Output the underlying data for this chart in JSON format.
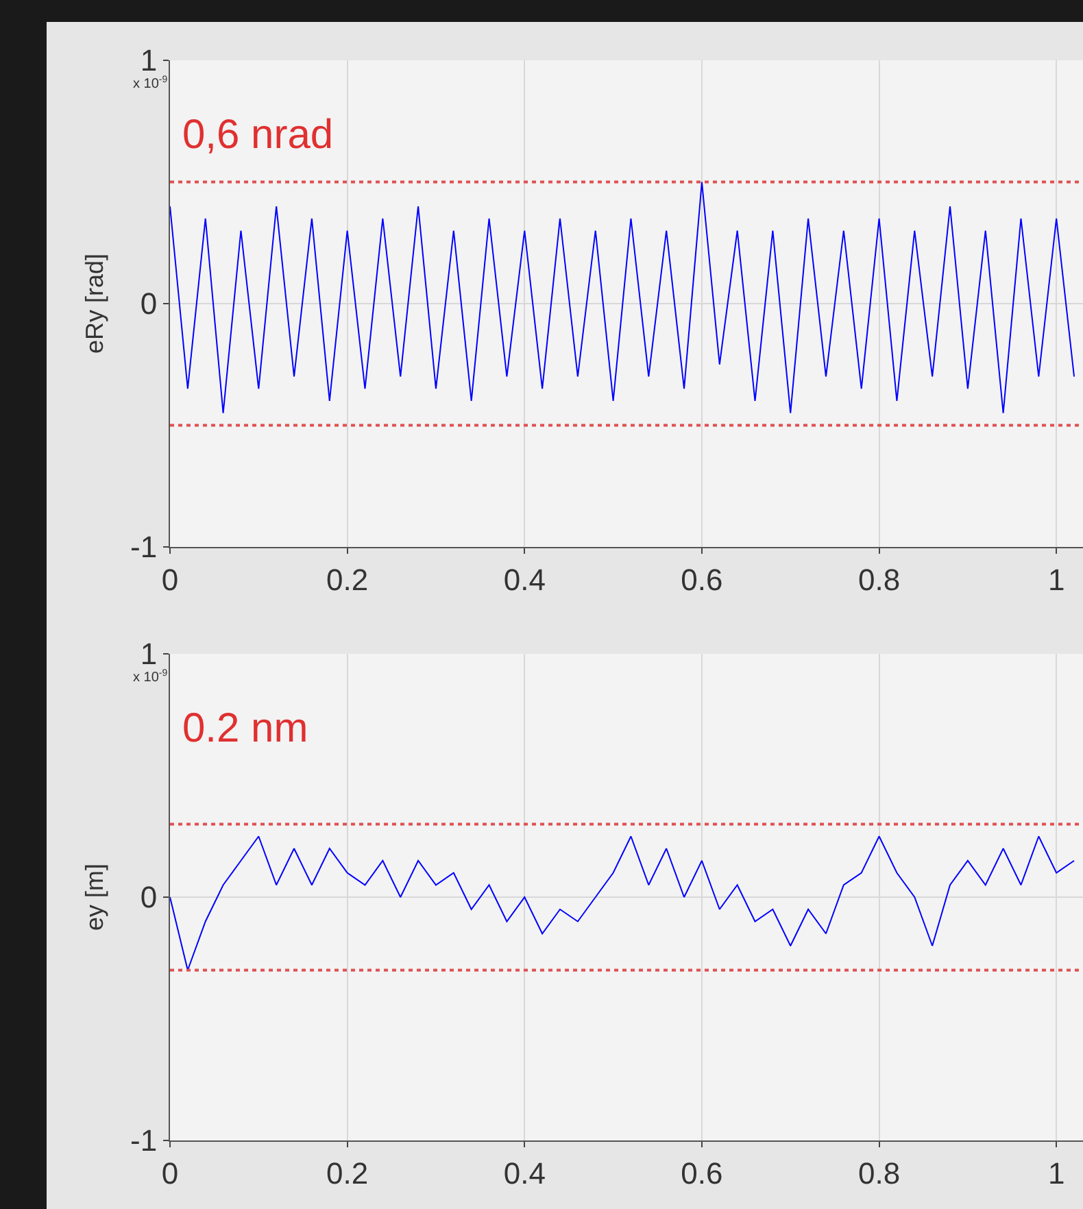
{
  "chart_data": [
    {
      "type": "line",
      "ylabel": "eRy [rad]",
      "xlim": [
        0,
        1.03
      ],
      "xticks": [
        0,
        0.2,
        0.4,
        0.6,
        0.8,
        1
      ],
      "ylim": [
        -1,
        1
      ],
      "yticks": [
        -1,
        0,
        1
      ],
      "grid": true,
      "line_style": "solid",
      "x": [
        0,
        0.02,
        0.04,
        0.06,
        0.08,
        0.1,
        0.12,
        0.14,
        0.16,
        0.18,
        0.2,
        0.22,
        0.24,
        0.26,
        0.28,
        0.3,
        0.32,
        0.34,
        0.36,
        0.38,
        0.4,
        0.42,
        0.44,
        0.46,
        0.48,
        0.5,
        0.52,
        0.54,
        0.56,
        0.58,
        0.6,
        0.62,
        0.64,
        0.66,
        0.68,
        0.7,
        0.72,
        0.74,
        0.76,
        0.78,
        0.8,
        0.82,
        0.84,
        0.86,
        0.88,
        0.9,
        0.92,
        0.94,
        0.96,
        0.98,
        1,
        1.02
      ],
      "series": [
        {
          "color": "#0000ff",
          "values": [
            0.4,
            -0.35,
            0.35,
            -0.45,
            0.3,
            -0.35,
            0.4,
            -0.3,
            0.35,
            -0.4,
            0.3,
            -0.35,
            0.35,
            -0.3,
            0.4,
            -0.35,
            0.3,
            -0.4,
            0.35,
            -0.3,
            0.3,
            -0.35,
            0.35,
            -0.3,
            0.3,
            -0.4,
            0.35,
            -0.3,
            0.3,
            -0.35,
            0.5,
            -0.25,
            0.3,
            -0.4,
            0.3,
            -0.45,
            0.35,
            -0.3,
            0.3,
            -0.35,
            0.35,
            -0.4,
            0.3,
            -0.3,
            0.4,
            -0.35,
            0.3,
            -0.45,
            0.35,
            -0.3,
            0.35,
            -0.3
          ]
        }
      ],
      "ref_lines": [
        {
          "axis": "y",
          "value": 0.5,
          "color": "#e05050",
          "line_style": "dotted"
        },
        {
          "axis": "y",
          "value": -0.5,
          "color": "#e05050",
          "line_style": "dotted"
        }
      ],
      "annotations": [
        "x 10$^{-9}$",
        "0,6 nrad"
      ]
    },
    {
      "type": "line",
      "ylabel": "ey [m]",
      "xlim": [
        0,
        1.03
      ],
      "xticks": [
        0,
        0.2,
        0.4,
        0.6,
        0.8,
        1
      ],
      "ylim": [
        -1,
        1
      ],
      "yticks": [
        -1,
        0,
        1
      ],
      "grid": true,
      "line_style": "solid",
      "x": [
        0,
        0.02,
        0.04,
        0.06,
        0.08,
        0.1,
        0.12,
        0.14,
        0.16,
        0.18,
        0.2,
        0.22,
        0.24,
        0.26,
        0.28,
        0.3,
        0.32,
        0.34,
        0.36,
        0.38,
        0.4,
        0.42,
        0.44,
        0.46,
        0.48,
        0.5,
        0.52,
        0.54,
        0.56,
        0.58,
        0.6,
        0.62,
        0.64,
        0.66,
        0.68,
        0.7,
        0.72,
        0.74,
        0.76,
        0.78,
        0.8,
        0.82,
        0.84,
        0.86,
        0.88,
        0.9,
        0.92,
        0.94,
        0.96,
        0.98,
        1,
        1.02
      ],
      "series": [
        {
          "color": "#0000ff",
          "values": [
            0,
            -0.3,
            -0.1,
            0.05,
            0.15,
            0.25,
            0.05,
            0.2,
            0.05,
            0.2,
            0.1,
            0.05,
            0.15,
            0,
            0.15,
            0.05,
            0.1,
            -0.05,
            0.05,
            -0.1,
            0,
            -0.15,
            -0.05,
            -0.1,
            0,
            0.1,
            0.25,
            0.05,
            0.2,
            0,
            0.15,
            -0.05,
            0.05,
            -0.1,
            -0.05,
            -0.2,
            -0.05,
            -0.15,
            0.05,
            0.1,
            0.25,
            0.1,
            0,
            -0.2,
            0.05,
            0.15,
            0.05,
            0.2,
            0.05,
            0.25,
            0.1,
            0.15
          ]
        }
      ],
      "ref_lines": [
        {
          "axis": "y",
          "value": 0.3,
          "color": "#e05050",
          "line_style": "dotted"
        },
        {
          "axis": "y",
          "value": -0.3,
          "color": "#e05050",
          "line_style": "dotted"
        }
      ],
      "annotations": [
        "x 10$^{-9}$",
        "0.2 nm"
      ]
    }
  ]
}
